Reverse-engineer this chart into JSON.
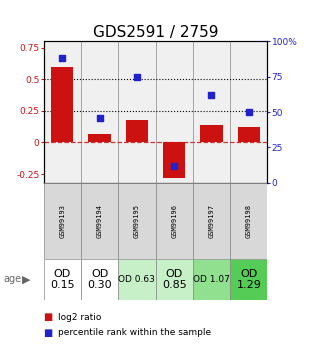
{
  "title": "GDS2591 / 2759",
  "samples": [
    "GSM99193",
    "GSM99194",
    "GSM99195",
    "GSM99196",
    "GSM99197",
    "GSM99198"
  ],
  "log2_ratio": [
    0.6,
    0.07,
    0.18,
    -0.28,
    0.14,
    0.12
  ],
  "percentile_rank": [
    0.88,
    0.46,
    0.75,
    0.12,
    0.62,
    0.5
  ],
  "age_labels": [
    "OD\n0.15",
    "OD\n0.30",
    "OD 0.63",
    "OD\n0.85",
    "OD 1.07",
    "OD\n1.29"
  ],
  "age_colors": [
    "#ffffff",
    "#ffffff",
    "#c8f0c8",
    "#c8f0c8",
    "#90e090",
    "#55cc55"
  ],
  "age_fontsize": [
    8,
    8,
    6.5,
    8,
    6.5,
    8
  ],
  "bar_color": "#cc1111",
  "square_color": "#2222cc",
  "ylim_left": [
    -0.32,
    0.8
  ],
  "ylim_right": [
    0,
    1.0
  ],
  "yticks_left": [
    -0.25,
    0.0,
    0.25,
    0.5,
    0.75
  ],
  "yticks_right": [
    0,
    0.25,
    0.5,
    0.75,
    1.0
  ],
  "ytick_labels_left": [
    "-0.25",
    "0",
    "0.25",
    "0.5",
    "0.75"
  ],
  "ytick_labels_right": [
    "0",
    "25",
    "50",
    "75",
    "100%"
  ],
  "hlines": [
    0.25,
    0.5
  ],
  "hline_color": "#000000",
  "zeroline_color": "#cc3333",
  "cell_bg": "#d8d8d8",
  "bg_color": "#f0f0f0",
  "title_fontsize": 11
}
